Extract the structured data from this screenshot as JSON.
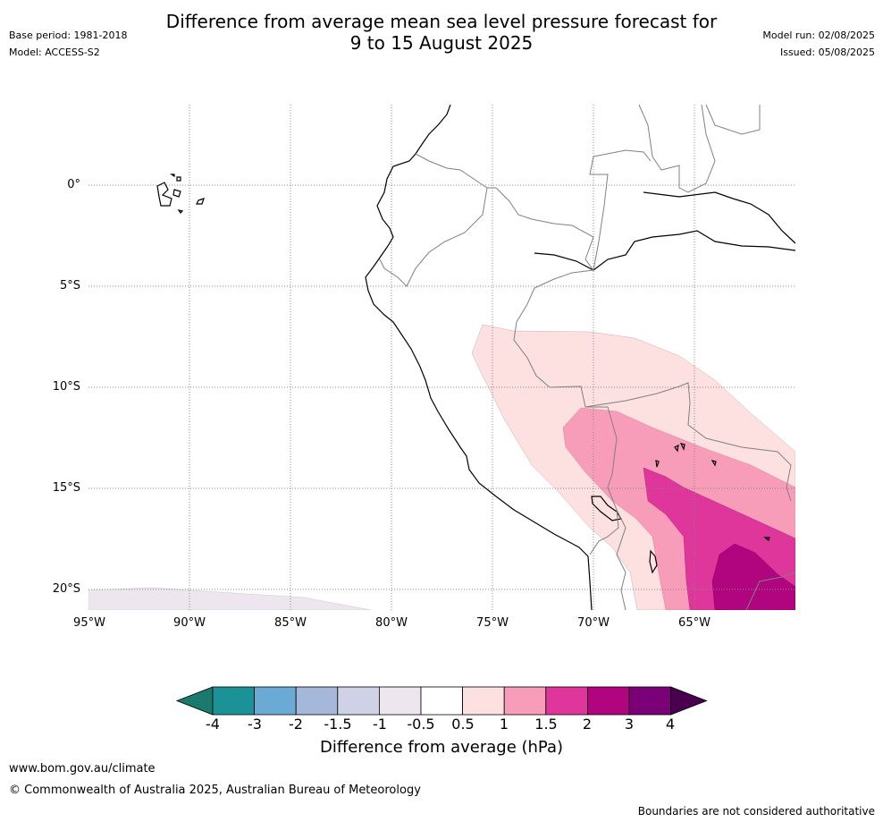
{
  "header": {
    "title_line1": "Difference from average mean sea level pressure forecast for",
    "title_line2": "9 to 15 August 2025",
    "base_period": "Base period: 1981-2018",
    "model": "Model: ACCESS-S2",
    "model_run": "Model run: 02/08/2025",
    "issued": "Issued: 05/08/2025"
  },
  "map": {
    "lat_labels": [
      "0°",
      "5°S",
      "10°S",
      "15°S",
      "20°S"
    ],
    "lon_labels": [
      "95°W",
      "90°W",
      "85°W",
      "80°W",
      "75°W",
      "70°W",
      "65°W"
    ]
  },
  "colorbar": {
    "ticks": [
      "-4",
      "-3",
      "-2",
      "-1.5",
      "-1",
      "-0.5",
      "0.5",
      "1",
      "1.5",
      "2",
      "3",
      "4"
    ],
    "colors": [
      "#1b7a6e",
      "#1b9296",
      "#6aaad4",
      "#a6b8da",
      "#cfd2e6",
      "#eee6ee",
      "#ffffff",
      "#fde0e0",
      "#f89db9",
      "#de369a",
      "#b0057e",
      "#7b0077",
      "#4a004f"
    ],
    "label": "Difference from average (hPa)"
  },
  "footer": {
    "website": "www.bom.gov.au/climate",
    "copyright": "© Commonwealth of Australia 2025, Australian Bureau of Meteorology",
    "disclaimer": "Boundaries are not considered authoritative"
  }
}
